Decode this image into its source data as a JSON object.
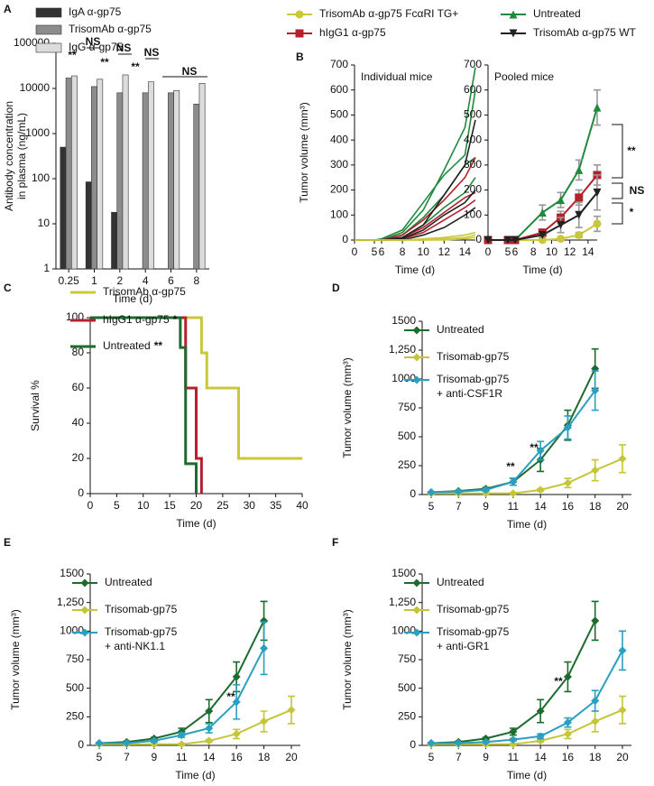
{
  "chart_data": [
    {
      "panel": "A",
      "type": "bar",
      "log": true,
      "x_label": "Time (d)",
      "y_label": [
        "Antibody concentration",
        "in plasma (ng/mL)"
      ],
      "categories": [
        "0.25",
        "1",
        "2",
        "4",
        "6",
        "8"
      ],
      "series": [
        {
          "name": "IgA α-gp75",
          "color": "#333333",
          "values": [
            500,
            85,
            18,
            null,
            null,
            null
          ]
        },
        {
          "name": "TrisomAb α-gp75",
          "color": "#8c8c8c",
          "values": [
            17000,
            11000,
            8000,
            8000,
            8000,
            4500
          ]
        },
        {
          "name": "IgG α-gp75",
          "color": "#dcdcdc",
          "values": [
            19000,
            16000,
            20000,
            14000,
            9000,
            13000
          ]
        }
      ],
      "ylim": [
        1,
        100000
      ],
      "yticks": [
        1,
        10,
        100,
        1000,
        10000,
        100000
      ],
      "annotations": [
        "NS",
        "**",
        "NS",
        "**",
        "NS",
        "**",
        "NS"
      ]
    },
    {
      "panel": "B",
      "type": "line",
      "subtitle": "Individual mice",
      "x_label": "Time (d)",
      "y_label": [
        "Tumor volume (mm³)"
      ],
      "x": [
        0,
        5,
        6,
        8,
        10,
        12,
        14,
        15
      ],
      "xlim": [
        0,
        15
      ],
      "axis_break": [
        5,
        6
      ],
      "xticks": [
        0,
        5,
        6,
        8,
        10,
        12,
        14
      ],
      "series": [
        {
          "color": "#1f8a3c",
          "values": [
            0,
            0,
            0,
            30,
            120,
            280,
            450,
            690
          ]
        },
        {
          "color": "#1f8a3c",
          "values": [
            0,
            0,
            5,
            40,
            150,
            260,
            340,
            600
          ]
        },
        {
          "color": "#1f8a3c",
          "values": [
            0,
            0,
            0,
            20,
            90,
            180,
            300,
            330
          ]
        },
        {
          "color": "#1f8a3c",
          "values": [
            0,
            0,
            0,
            10,
            60,
            130,
            190,
            250
          ]
        },
        {
          "color": "#b5202a",
          "values": [
            0,
            0,
            0,
            20,
            80,
            160,
            250,
            330
          ]
        },
        {
          "color": "#b5202a",
          "values": [
            0,
            0,
            0,
            10,
            50,
            110,
            170,
            190
          ]
        },
        {
          "color": "#b5202a",
          "values": [
            0,
            0,
            0,
            5,
            30,
            80,
            130,
            160
          ]
        },
        {
          "color": "#222222",
          "values": [
            0,
            0,
            0,
            10,
            60,
            180,
            300,
            480
          ]
        },
        {
          "color": "#222222",
          "values": [
            0,
            0,
            0,
            5,
            40,
            100,
            150,
            200
          ]
        },
        {
          "color": "#222222",
          "values": [
            0,
            0,
            0,
            0,
            20,
            50,
            100,
            130
          ]
        },
        {
          "color": "#c8c83a",
          "values": [
            0,
            0,
            0,
            0,
            5,
            10,
            20,
            30
          ]
        },
        {
          "color": "#c8c83a",
          "values": [
            0,
            0,
            0,
            0,
            0,
            5,
            10,
            20
          ]
        },
        {
          "color": "#c8c83a",
          "values": [
            0,
            0,
            0,
            0,
            0,
            0,
            5,
            10
          ]
        }
      ],
      "ylim": [
        0,
        700
      ],
      "yticks": [
        0,
        100,
        200,
        300,
        400,
        500,
        600,
        700
      ]
    },
    {
      "panel": "",
      "type": "line",
      "subtitle": "Pooled mice",
      "x_label": "Time (d)",
      "x": [
        0,
        5,
        6,
        9,
        11,
        13,
        15
      ],
      "xlim": [
        0,
        15
      ],
      "axis_break": [
        5,
        6
      ],
      "xticks": [
        0,
        5,
        6,
        8,
        10,
        12,
        14
      ],
      "series": [
        {
          "name": "TrisomAb α-gp75 FcαRI TG+",
          "color": "#c8c83a",
          "marker": "circle",
          "values": [
            0,
            0,
            0,
            0,
            5,
            20,
            65
          ],
          "errors": [
            0,
            0,
            0,
            0,
            5,
            10,
            30
          ]
        },
        {
          "name": "Untreated",
          "color": "#1f8a3c",
          "marker": "triangle",
          "values": [
            0,
            0,
            0,
            110,
            160,
            280,
            530
          ],
          "errors": [
            0,
            0,
            0,
            30,
            30,
            40,
            70
          ]
        },
        {
          "name": "hIgG1 α-gp75",
          "color": "#b5202a",
          "marker": "square",
          "values": [
            0,
            0,
            0,
            30,
            90,
            170,
            260
          ],
          "errors": [
            0,
            0,
            0,
            10,
            25,
            30,
            40
          ]
        },
        {
          "name": "TrisomAb α-gp75 WT",
          "color": "#222222",
          "marker": "triangle-down",
          "values": [
            0,
            0,
            0,
            20,
            60,
            100,
            190
          ],
          "errors": [
            0,
            0,
            0,
            10,
            30,
            50,
            70
          ]
        }
      ],
      "ylim": [
        0,
        700
      ],
      "yticks": [
        0,
        100,
        200,
        300,
        400,
        500,
        600,
        700
      ],
      "annotations": [
        "**",
        "NS",
        "*"
      ]
    },
    {
      "panel": "C",
      "type": "step",
      "x_label": "Time (d)",
      "y_label": [
        "Survival %"
      ],
      "series": [
        {
          "name": "TrisomAb α-gp75",
          "color": "#c8c83a",
          "x": [
            0,
            21,
            22,
            28,
            40
          ],
          "values": [
            100,
            80,
            60,
            20,
            20
          ]
        },
        {
          "name": "hIgG1 α-gp75",
          "significance": "*",
          "color": "#b5202a",
          "x": [
            0,
            18,
            20,
            21
          ],
          "values": [
            100,
            60,
            20,
            0
          ]
        },
        {
          "name": "Untreated",
          "significance": "**",
          "color": "#1d6b2f",
          "x": [
            0,
            17,
            18,
            20
          ],
          "values": [
            100,
            83,
            17,
            0
          ]
        }
      ],
      "xlim": [
        0,
        40
      ],
      "xticks": [
        0,
        5,
        10,
        15,
        20,
        25,
        30,
        35,
        40
      ],
      "ylim": [
        0,
        100
      ],
      "yticks": [
        0,
        20,
        40,
        60,
        80,
        100
      ]
    },
    {
      "panel": "D",
      "type": "line",
      "x_label": "Time (d)",
      "y_label": [
        "Tumor volume (mm³)"
      ],
      "categories": [
        5,
        7,
        9,
        11,
        14,
        16,
        18,
        20
      ],
      "series": [
        {
          "name": [
            "Untreated"
          ],
          "color": "#1d6b2f",
          "marker": "diamond",
          "values": [
            20,
            30,
            50,
            110,
            300,
            600,
            1090,
            null
          ],
          "errors": [
            5,
            5,
            10,
            30,
            100,
            130,
            170,
            null
          ]
        },
        {
          "name": [
            "Trisomab-gp75"
          ],
          "color": "#c5c53a",
          "marker": "diamond",
          "values": [
            10,
            10,
            10,
            10,
            40,
            100,
            210,
            310
          ],
          "errors": [
            2,
            2,
            2,
            5,
            10,
            40,
            90,
            120
          ]
        },
        {
          "name": [
            "Trisomab-gp75",
            "+ anti-CSF1R"
          ],
          "color": "#2a9fbf",
          "marker": "diamond",
          "values": [
            20,
            25,
            40,
            110,
            380,
            580,
            900,
            null
          ],
          "errors": [
            5,
            5,
            10,
            30,
            80,
            100,
            170,
            null
          ]
        }
      ],
      "ylim": [
        0,
        1500
      ],
      "yticks": [
        0,
        250,
        500,
        750,
        1000,
        {
          "value": 1250,
          "label": "1,250"
        },
        1500
      ],
      "annotations": [
        "**",
        "**"
      ]
    },
    {
      "panel": "E",
      "type": "line",
      "x_label": "Time (d)",
      "y_label": [
        "Tumor volume (mm³)"
      ],
      "categories": [
        5,
        7,
        9,
        11,
        14,
        16,
        18,
        20
      ],
      "series": [
        {
          "name": [
            "Untreated"
          ],
          "color": "#1d6b2f",
          "marker": "diamond",
          "values": [
            20,
            30,
            60,
            120,
            300,
            600,
            1090,
            null
          ],
          "errors": [
            5,
            5,
            10,
            30,
            100,
            130,
            170,
            null
          ]
        },
        {
          "name": [
            "Trisomab-gp75"
          ],
          "color": "#c5c53a",
          "marker": "diamond",
          "values": [
            10,
            10,
            10,
            10,
            40,
            100,
            210,
            310
          ],
          "errors": [
            2,
            2,
            2,
            5,
            10,
            40,
            90,
            120
          ]
        },
        {
          "name": [
            "Trisomab-gp75",
            "+ anti-NK1.1"
          ],
          "color": "#2a9fbf",
          "marker": "diamond",
          "values": [
            20,
            20,
            40,
            90,
            150,
            380,
            850,
            null
          ],
          "errors": [
            5,
            5,
            10,
            20,
            40,
            150,
            230,
            null
          ]
        }
      ],
      "ylim": [
        0,
        1500
      ],
      "yticks": [
        0,
        250,
        500,
        750,
        1000,
        {
          "value": 1250,
          "label": "1,250"
        },
        1500
      ],
      "annotations": [
        "**"
      ]
    },
    {
      "panel": "F",
      "type": "line",
      "x_label": "Time (d)",
      "y_label": [
        "Tumor volume (mm³)"
      ],
      "categories": [
        5,
        7,
        9,
        11,
        14,
        16,
        18,
        20
      ],
      "series": [
        {
          "name": [
            "Untreated"
          ],
          "color": "#1d6b2f",
          "marker": "diamond",
          "values": [
            20,
            30,
            60,
            120,
            300,
            600,
            1090,
            null
          ],
          "errors": [
            5,
            5,
            10,
            30,
            100,
            130,
            170,
            null
          ]
        },
        {
          "name": [
            "Trisomab-gp75"
          ],
          "color": "#c5c53a",
          "marker": "diamond",
          "values": [
            10,
            10,
            10,
            10,
            40,
            100,
            210,
            310
          ],
          "errors": [
            2,
            2,
            2,
            5,
            10,
            40,
            90,
            120
          ]
        },
        {
          "name": [
            "Trisomab-gp75",
            "+ anti-GR1"
          ],
          "color": "#2a9fbf",
          "marker": "diamond",
          "values": [
            20,
            20,
            30,
            50,
            80,
            200,
            390,
            830
          ],
          "errors": [
            5,
            5,
            5,
            10,
            20,
            40,
            90,
            170
          ]
        }
      ],
      "ylim": [
        0,
        1500
      ],
      "yticks": [
        0,
        250,
        500,
        750,
        1000,
        {
          "value": 1250,
          "label": "1,250"
        },
        1500
      ],
      "annotations": [
        "**"
      ]
    }
  ]
}
